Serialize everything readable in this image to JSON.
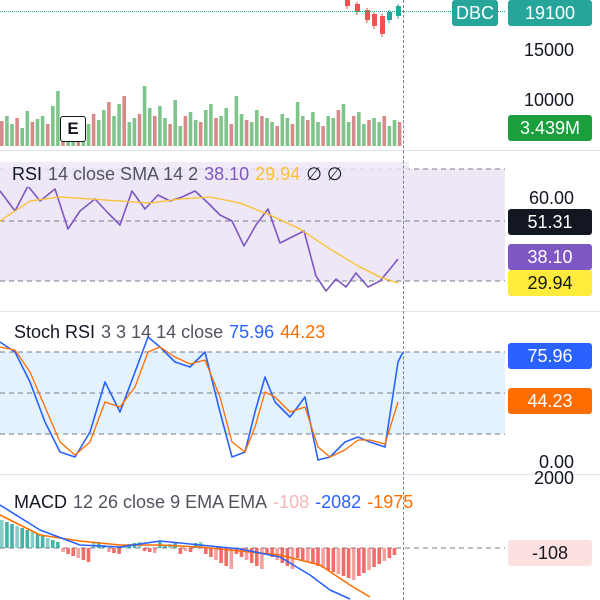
{
  "price_pane": {
    "symbol_badge": "DBC",
    "price_badge": "19100",
    "volume_badge": "3.439M",
    "axis_labels": [
      "15000",
      "10000"
    ],
    "marker_label": "E",
    "colors": {
      "up": "#26a69a",
      "down": "#ef5350",
      "vol_up": "#7fc48a",
      "vol_down": "#d68a8a"
    }
  },
  "rsi_pane": {
    "title": "RSI",
    "params": "14 close SMA 14 2",
    "value1": "38.10",
    "value2": "29.94",
    "extra": "∅ ∅",
    "axis_label": "60.00",
    "badge_dark": "51.31",
    "badge_purple": "38.10",
    "badge_yellow": "29.94",
    "colors": {
      "rsi": "#7e57c2",
      "sma": "#fbc02d",
      "band": "#ede7f6"
    }
  },
  "stoch_pane": {
    "title": "Stoch RSI",
    "params": "3 3 14 14 close",
    "k_value": "75.96",
    "d_value": "44.23",
    "axis_label": "0.00",
    "badge_blue": "75.96",
    "badge_orange": "44.23",
    "colors": {
      "k": "#2962ff",
      "d": "#ff6d00",
      "band": "#e3f2fd"
    }
  },
  "macd_pane": {
    "title": "MACD",
    "params": "12 26 close 9 EMA EMA",
    "hist_value": "-108",
    "macd_value": "-2082",
    "signal_value": "-1975",
    "axis_label": "2000",
    "badge_hist": "-108",
    "colors": {
      "macd": "#2962ff",
      "signal": "#ff6d00",
      "hist_pos": "#26a69a",
      "hist_neg": "#ef5350"
    }
  }
}
